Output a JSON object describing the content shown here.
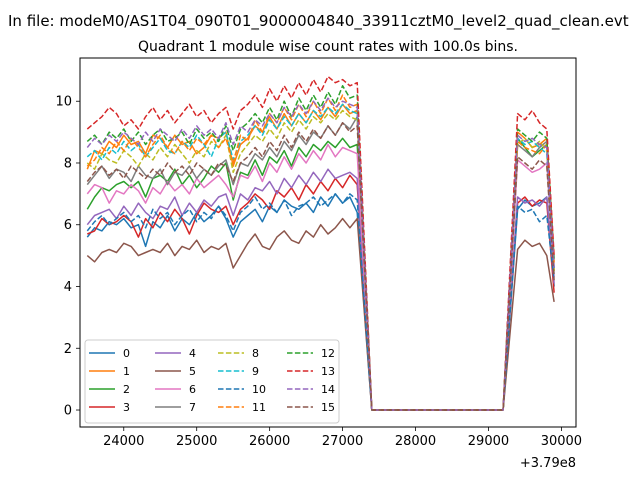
{
  "chart_data": {
    "type": "line",
    "suptitle": "In file: modeM0/AS1T04_090T01_9000004840_33911cztM0_level2_quad_clean.evt",
    "title": "Quadrant 1 module wise count rates with 100.0s bins.",
    "xlabel": "",
    "ylabel": "",
    "x_offset_label": "+3.79e8",
    "xlim": [
      23400,
      30200
    ],
    "ylim": [
      -0.55,
      11.4
    ],
    "xticks": [
      24000,
      25000,
      26000,
      27000,
      28000,
      29000,
      30000
    ],
    "yticks": [
      0,
      2,
      4,
      6,
      8,
      10
    ],
    "legend": {
      "location": "lower-left",
      "columns": 4
    },
    "colors": [
      "#1f77b4",
      "#ff7f0e",
      "#2ca02c",
      "#d62728",
      "#9467bd",
      "#8c564b",
      "#e377c2",
      "#7f7f7f",
      "#bcbd22",
      "#17becf"
    ],
    "gaps": [
      [
        27200,
        27400
      ],
      [
        29200,
        29400
      ]
    ],
    "x": [
      23500,
      23600,
      23700,
      23800,
      23900,
      24000,
      24100,
      24200,
      24300,
      24400,
      24500,
      24600,
      24700,
      24800,
      24900,
      25000,
      25100,
      25200,
      25300,
      25400,
      25500,
      25600,
      25700,
      25800,
      25900,
      26000,
      26100,
      26200,
      26300,
      26400,
      26500,
      26600,
      26700,
      26800,
      26900,
      27000,
      27100,
      27200,
      27400,
      27500,
      27600,
      27700,
      27800,
      27900,
      28000,
      28100,
      28200,
      28300,
      28400,
      28500,
      28600,
      28700,
      28800,
      28900,
      29000,
      29100,
      29200,
      29400,
      29500,
      29600,
      29700,
      29800,
      29900
    ],
    "series": [
      {
        "name": "0",
        "style": "solid",
        "values": [
          5.6,
          5.9,
          5.8,
          6.1,
          6.0,
          6.2,
          5.9,
          6.0,
          5.3,
          6.1,
          5.9,
          6.3,
          5.8,
          6.2,
          6.0,
          6.4,
          6.1,
          6.3,
          6.6,
          6.2,
          5.6,
          6.1,
          6.3,
          6.5,
          6.1,
          6.6,
          6.4,
          6.8,
          6.6,
          6.5,
          6.7,
          6.4,
          6.9,
          6.6,
          7.0,
          6.7,
          6.9,
          6.4,
          0,
          0,
          0,
          0,
          0,
          0,
          0,
          0,
          0,
          0,
          0,
          0,
          0,
          0,
          0,
          0,
          0,
          0,
          0,
          6.5,
          6.8,
          6.6,
          6.7,
          6.9,
          4.0
        ]
      },
      {
        "name": "1",
        "style": "solid",
        "values": [
          7.8,
          8.4,
          8.3,
          8.7,
          8.5,
          8.9,
          8.6,
          8.7,
          8.3,
          8.9,
          8.8,
          8.5,
          8.9,
          8.6,
          8.7,
          8.3,
          8.5,
          8.9,
          8.8,
          9.0,
          7.9,
          8.6,
          8.8,
          9.2,
          9.0,
          9.5,
          9.1,
          9.6,
          9.2,
          9.6,
          9.3,
          9.7,
          9.4,
          9.8,
          9.5,
          9.9,
          9.6,
          9.7,
          0,
          0,
          0,
          0,
          0,
          0,
          0,
          0,
          0,
          0,
          0,
          0,
          0,
          0,
          0,
          0,
          0,
          0,
          0,
          9.0,
          8.8,
          8.5,
          8.6,
          8.8,
          4.8
        ]
      },
      {
        "name": "2",
        "style": "solid",
        "values": [
          6.5,
          6.9,
          7.2,
          7.1,
          7.3,
          7.4,
          7.2,
          7.4,
          6.9,
          7.5,
          7.6,
          7.4,
          7.8,
          7.3,
          7.6,
          7.2,
          7.5,
          7.9,
          7.7,
          8.0,
          6.8,
          7.7,
          7.6,
          8.1,
          7.6,
          8.2,
          8.0,
          8.4,
          7.9,
          8.5,
          8.2,
          8.6,
          8.4,
          8.7,
          8.5,
          8.8,
          8.5,
          8.6,
          0,
          0,
          0,
          0,
          0,
          0,
          0,
          0,
          0,
          0,
          0,
          0,
          0,
          0,
          0,
          0,
          0,
          0,
          0,
          8.8,
          8.5,
          8.2,
          8.4,
          8.6,
          4.5
        ]
      },
      {
        "name": "3",
        "style": "solid",
        "values": [
          5.7,
          5.8,
          6.2,
          6.0,
          6.1,
          6.3,
          6.1,
          5.6,
          6.2,
          5.9,
          6.4,
          6.1,
          6.5,
          6.2,
          5.7,
          6.3,
          6.7,
          6.5,
          6.4,
          6.6,
          6.0,
          6.5,
          6.7,
          7.0,
          6.8,
          6.5,
          7.1,
          6.9,
          7.2,
          6.8,
          7.3,
          7.0,
          7.4,
          7.1,
          7.5,
          7.2,
          7.6,
          7.3,
          0,
          0,
          0,
          0,
          0,
          0,
          0,
          0,
          0,
          0,
          0,
          0,
          0,
          0,
          0,
          0,
          0,
          0,
          0,
          6.7,
          6.9,
          6.6,
          6.8,
          6.7,
          3.8
        ]
      },
      {
        "name": "4",
        "style": "solid",
        "values": [
          6.0,
          6.3,
          6.4,
          6.5,
          6.2,
          6.6,
          6.3,
          6.7,
          6.4,
          6.2,
          6.6,
          6.5,
          6.9,
          6.3,
          6.7,
          6.4,
          6.8,
          6.6,
          6.9,
          7.0,
          6.3,
          7.0,
          6.8,
          7.2,
          7.1,
          7.4,
          7.0,
          7.5,
          7.2,
          7.6,
          7.3,
          7.7,
          7.4,
          7.8,
          7.5,
          7.6,
          7.7,
          7.5,
          0,
          0,
          0,
          0,
          0,
          0,
          0,
          0,
          0,
          0,
          0,
          0,
          0,
          0,
          0,
          0,
          0,
          0,
          0,
          6.9,
          6.7,
          6.8,
          6.6,
          6.9,
          4.1
        ]
      },
      {
        "name": "5",
        "style": "solid",
        "values": [
          5.0,
          4.8,
          5.1,
          5.2,
          5.1,
          5.4,
          5.3,
          5.0,
          5.1,
          5.2,
          5.1,
          5.4,
          5.0,
          5.3,
          5.2,
          5.5,
          5.1,
          5.3,
          5.2,
          5.4,
          4.6,
          5.0,
          5.4,
          5.7,
          5.3,
          5.2,
          5.6,
          5.8,
          5.5,
          5.4,
          5.8,
          5.6,
          6.0,
          5.7,
          5.9,
          6.2,
          5.9,
          6.2,
          0,
          0,
          0,
          0,
          0,
          0,
          0,
          0,
          0,
          0,
          0,
          0,
          0,
          0,
          0,
          0,
          0,
          0,
          0,
          5.2,
          5.5,
          5.3,
          5.4,
          5.0,
          3.5
        ]
      },
      {
        "name": "6",
        "style": "solid",
        "values": [
          7.0,
          7.3,
          7.2,
          6.7,
          7.1,
          7.0,
          7.3,
          7.1,
          6.7,
          7.2,
          7.0,
          7.4,
          7.1,
          7.3,
          7.0,
          7.5,
          7.2,
          7.4,
          7.6,
          7.3,
          6.9,
          7.6,
          7.5,
          7.9,
          7.4,
          8.0,
          7.7,
          8.2,
          7.8,
          8.3,
          8.0,
          8.4,
          8.1,
          8.6,
          8.2,
          8.5,
          8.4,
          8.3,
          0,
          0,
          0,
          0,
          0,
          0,
          0,
          0,
          0,
          0,
          0,
          0,
          0,
          0,
          0,
          0,
          0,
          0,
          0,
          8.1,
          7.9,
          7.7,
          7.8,
          8.0,
          4.3
        ]
      },
      {
        "name": "7",
        "style": "solid",
        "values": [
          7.3,
          7.6,
          7.9,
          7.5,
          7.8,
          7.7,
          7.4,
          7.9,
          7.6,
          7.5,
          7.8,
          7.3,
          7.7,
          7.6,
          7.9,
          7.5,
          7.8,
          7.6,
          7.9,
          8.1,
          7.3,
          8.0,
          7.9,
          8.3,
          8.1,
          8.5,
          8.2,
          8.7,
          8.4,
          8.9,
          8.6,
          9.0,
          8.8,
          9.2,
          8.9,
          9.3,
          9.1,
          9.5,
          0,
          0,
          0,
          0,
          0,
          0,
          0,
          0,
          0,
          0,
          0,
          0,
          0,
          0,
          0,
          0,
          0,
          0,
          0,
          8.6,
          8.4,
          8.2,
          8.5,
          8.7,
          4.4
        ]
      },
      {
        "name": "8",
        "style": "dashed",
        "values": [
          8.0,
          7.8,
          8.3,
          8.1,
          8.0,
          8.4,
          8.2,
          7.9,
          8.3,
          8.1,
          8.5,
          8.2,
          8.6,
          8.3,
          8.0,
          8.4,
          8.2,
          8.7,
          8.5,
          8.9,
          7.7,
          8.3,
          8.6,
          8.9,
          8.7,
          9.1,
          8.8,
          9.3,
          9.0,
          9.4,
          9.1,
          9.5,
          9.3,
          9.6,
          9.4,
          9.7,
          9.5,
          9.4,
          0,
          0,
          0,
          0,
          0,
          0,
          0,
          0,
          0,
          0,
          0,
          0,
          0,
          0,
          0,
          0,
          0,
          0,
          0,
          8.6,
          8.8,
          8.5,
          8.7,
          8.4,
          4.5
        ]
      },
      {
        "name": "9",
        "style": "dashed",
        "values": [
          8.2,
          8.4,
          8.1,
          8.5,
          8.3,
          8.7,
          8.4,
          8.6,
          8.2,
          8.5,
          8.8,
          8.4,
          8.3,
          8.7,
          8.5,
          8.9,
          8.6,
          8.2,
          8.8,
          9.0,
          8.1,
          8.7,
          8.9,
          9.2,
          8.9,
          9.4,
          9.1,
          9.5,
          9.2,
          9.6,
          9.3,
          9.7,
          9.5,
          9.8,
          9.6,
          9.9,
          9.7,
          9.6,
          0,
          0,
          0,
          0,
          0,
          0,
          0,
          0,
          0,
          0,
          0,
          0,
          0,
          0,
          0,
          0,
          0,
          0,
          0,
          8.8,
          8.6,
          8.7,
          8.5,
          8.3,
          4.6
        ]
      },
      {
        "name": "10",
        "style": "dashed",
        "values": [
          5.8,
          6.1,
          6.3,
          6.0,
          6.2,
          6.4,
          6.1,
          6.3,
          5.9,
          6.5,
          6.2,
          6.4,
          6.0,
          6.3,
          6.5,
          6.1,
          6.4,
          6.2,
          6.6,
          6.3,
          5.8,
          6.4,
          6.6,
          6.9,
          6.5,
          6.7,
          6.4,
          6.8,
          6.3,
          6.6,
          6.7,
          6.9,
          6.6,
          6.8,
          7.0,
          6.7,
          7.0,
          6.8,
          0,
          0,
          0,
          0,
          0,
          0,
          0,
          0,
          0,
          0,
          0,
          0,
          0,
          0,
          0,
          0,
          0,
          0,
          0,
          6.6,
          6.4,
          6.5,
          6.1,
          6.3,
          4.2
        ]
      },
      {
        "name": "11",
        "style": "dashed",
        "values": [
          7.9,
          8.1,
          8.5,
          8.3,
          8.7,
          8.4,
          8.8,
          8.5,
          8.2,
          8.6,
          8.9,
          8.5,
          8.3,
          8.7,
          8.4,
          8.8,
          8.6,
          8.9,
          8.5,
          8.8,
          8.0,
          8.9,
          8.7,
          9.4,
          9.0,
          9.6,
          9.3,
          9.8,
          9.4,
          9.9,
          9.5,
          10.0,
          9.6,
          10.1,
          9.7,
          10.2,
          9.8,
          9.9,
          0,
          0,
          0,
          0,
          0,
          0,
          0,
          0,
          0,
          0,
          0,
          0,
          0,
          0,
          0,
          0,
          0,
          0,
          0,
          8.7,
          8.5,
          8.4,
          8.3,
          8.6,
          4.7
        ]
      },
      {
        "name": "12",
        "style": "dashed",
        "values": [
          8.7,
          8.9,
          8.6,
          9.0,
          8.8,
          9.1,
          8.7,
          9.0,
          8.6,
          8.9,
          9.1,
          8.7,
          8.8,
          9.0,
          8.6,
          9.1,
          8.8,
          9.0,
          8.7,
          9.2,
          8.4,
          9.1,
          9.3,
          9.6,
          9.3,
          9.8,
          9.4,
          10.0,
          9.5,
          10.1,
          9.7,
          10.2,
          9.8,
          10.3,
          9.9,
          10.5,
          10.1,
          10.2,
          0,
          0,
          0,
          0,
          0,
          0,
          0,
          0,
          0,
          0,
          0,
          0,
          0,
          0,
          0,
          0,
          0,
          0,
          0,
          9.1,
          8.9,
          8.7,
          9.0,
          8.8,
          4.9
        ]
      },
      {
        "name": "13",
        "style": "dashed",
        "values": [
          9.1,
          9.3,
          9.5,
          9.8,
          9.6,
          9.2,
          9.4,
          9.1,
          9.5,
          9.8,
          9.4,
          9.7,
          9.3,
          9.6,
          9.9,
          9.5,
          9.7,
          9.3,
          9.6,
          9.8,
          9.1,
          9.7,
          9.9,
          10.2,
          9.8,
          10.4,
          10.0,
          10.5,
          10.1,
          10.6,
          10.2,
          10.7,
          10.3,
          10.8,
          10.6,
          10.7,
          10.5,
          10.6,
          0,
          0,
          0,
          0,
          0,
          0,
          0,
          0,
          0,
          0,
          0,
          0,
          0,
          0,
          0,
          0,
          0,
          0,
          0,
          9.6,
          9.4,
          9.7,
          9.3,
          9.1,
          5.0
        ]
      },
      {
        "name": "14",
        "style": "dashed",
        "values": [
          8.5,
          8.8,
          8.6,
          8.9,
          8.7,
          9.0,
          8.8,
          8.6,
          9.0,
          8.7,
          9.1,
          8.9,
          8.7,
          9.1,
          8.8,
          9.2,
          8.9,
          9.1,
          8.8,
          9.3,
          8.6,
          9.2,
          9.0,
          9.4,
          9.2,
          9.6,
          9.3,
          9.8,
          9.5,
          9.9,
          9.6,
          10.0,
          9.7,
          10.1,
          9.8,
          10.0,
          9.9,
          9.8,
          0,
          0,
          0,
          0,
          0,
          0,
          0,
          0,
          0,
          0,
          0,
          0,
          0,
          0,
          0,
          0,
          0,
          0,
          0,
          8.9,
          8.7,
          8.8,
          8.6,
          8.5,
          4.6
        ]
      },
      {
        "name": "15",
        "style": "dashed",
        "values": [
          7.4,
          7.7,
          7.9,
          7.6,
          7.8,
          7.5,
          7.9,
          7.7,
          7.5,
          7.8,
          7.6,
          8.0,
          7.7,
          7.9,
          7.6,
          8.0,
          7.8,
          7.6,
          8.0,
          7.9,
          7.4,
          8.0,
          8.2,
          8.5,
          8.2,
          8.7,
          8.4,
          8.9,
          8.5,
          9.0,
          8.7,
          9.1,
          8.8,
          9.2,
          8.9,
          9.3,
          9.0,
          9.2,
          0,
          0,
          0,
          0,
          0,
          0,
          0,
          0,
          0,
          0,
          0,
          0,
          0,
          0,
          0,
          0,
          0,
          0,
          0,
          8.2,
          8.0,
          7.8,
          8.1,
          7.9,
          4.2
        ]
      }
    ]
  }
}
